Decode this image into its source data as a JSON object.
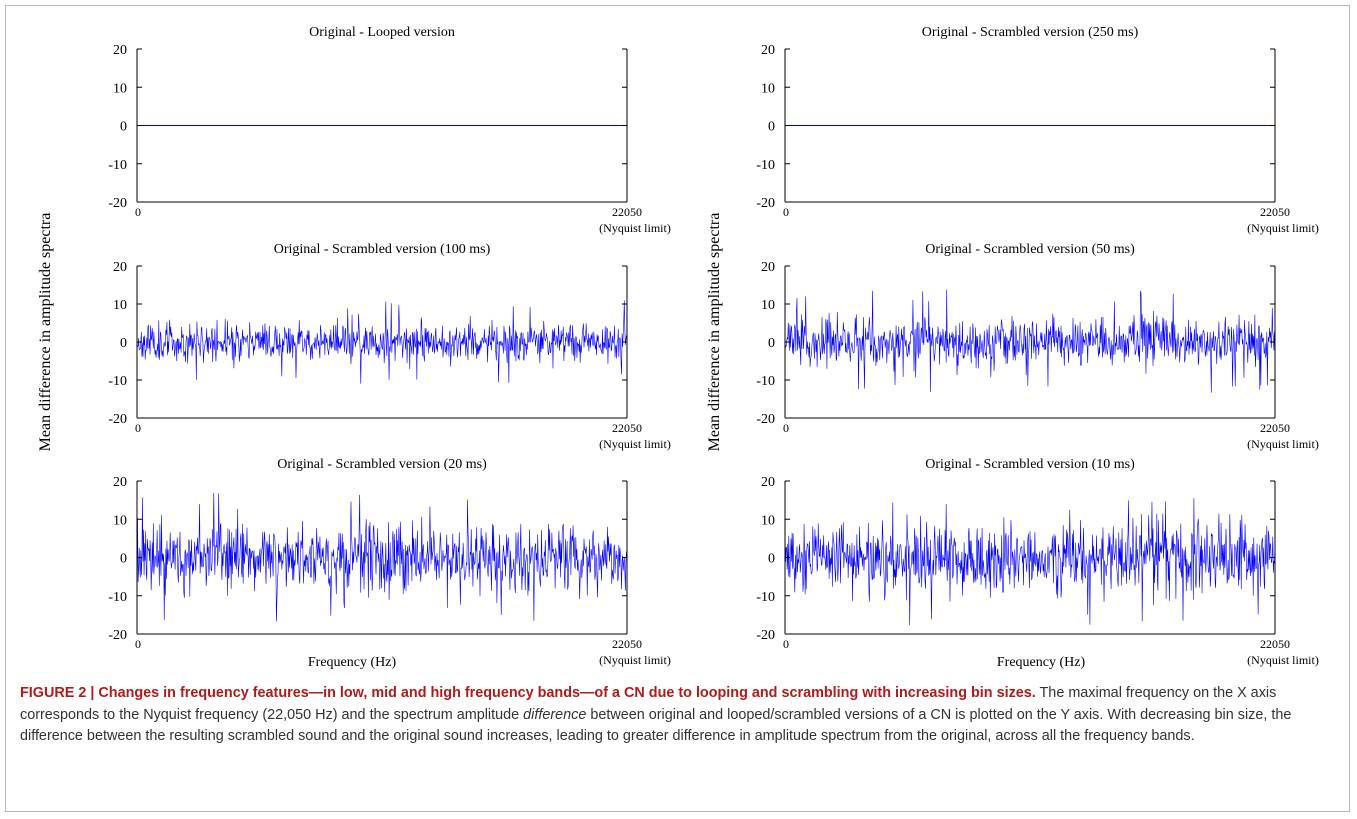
{
  "figure": {
    "ylabel": "Mean difference in amplitude spectra",
    "xlabel": "Frequency  (Hz)"
  },
  "caption": {
    "label": "FIGURE 2 | ",
    "title": "Changes in frequency features—in low, mid and high frequency bands—of a CN due to looping and scrambling with increasing bin sizes.",
    "body_1": " The maximal frequency on the X axis corresponds to the Nyquist frequency (22,050 Hz) and the spectrum amplitude ",
    "body_em": "difference",
    "body_2": " between original and looped/scrambled versions of a CN is plotted on the Y axis. With decreasing bin size, the difference between the resulting scrambled sound and the original sound increases, leading to greater difference in amplitude spectrum from the original, across all the frequency bands."
  },
  "colors": {
    "series": "#0000ff",
    "axis": "#000000",
    "caption_title": "#b31b1b"
  },
  "chart_data": [
    {
      "type": "line",
      "title": "Original - Looped version",
      "xlim": [
        0,
        22050
      ],
      "ylim": [
        -20,
        20
      ],
      "yticks": [
        20,
        10,
        0,
        -10,
        -20
      ],
      "xticks": [
        "0",
        "22050"
      ],
      "xmax_note": "(Nyquist limit)",
      "series": [
        {
          "kind": "constant",
          "value": 0
        }
      ]
    },
    {
      "type": "line",
      "title": "Original - Scrambled version (250 ms)",
      "xlim": [
        0,
        22050
      ],
      "ylim": [
        -20,
        20
      ],
      "yticks": [
        20,
        10,
        0,
        -10,
        -20
      ],
      "xticks": [
        "0",
        "22050"
      ],
      "xmax_note": "(Nyquist limit)",
      "series": [
        {
          "kind": "constant",
          "value": 0
        }
      ]
    },
    {
      "type": "line",
      "title": "Original - Scrambled version (100 ms)",
      "xlim": [
        0,
        22050
      ],
      "ylim": [
        -20,
        20
      ],
      "yticks": [
        20,
        10,
        0,
        -10,
        -20
      ],
      "xticks": [
        "0",
        "22050"
      ],
      "xmax_note": "(Nyquist limit)",
      "series": [
        {
          "kind": "noise",
          "typical_abs": 3.5,
          "max_abs": 11,
          "seed": 11
        }
      ]
    },
    {
      "type": "line",
      "title": "Original - Scrambled version (50 ms)",
      "xlim": [
        0,
        22050
      ],
      "ylim": [
        -20,
        20
      ],
      "yticks": [
        20,
        10,
        0,
        -10,
        -20
      ],
      "xticks": [
        "0",
        "22050"
      ],
      "xmax_note": "(Nyquist limit)",
      "series": [
        {
          "kind": "noise",
          "typical_abs": 4.5,
          "max_abs": 14,
          "seed": 23
        }
      ]
    },
    {
      "type": "line",
      "title": "Original - Scrambled version (20 ms)",
      "xlim": [
        0,
        22050
      ],
      "ylim": [
        -20,
        20
      ],
      "yticks": [
        20,
        10,
        0,
        -10,
        -20
      ],
      "xticks": [
        "0",
        "22050"
      ],
      "xmax_note": "(Nyquist limit)",
      "series": [
        {
          "kind": "noise",
          "typical_abs": 6,
          "max_abs": 17,
          "seed": 37
        }
      ]
    },
    {
      "type": "line",
      "title": "Original - Scrambled version (10 ms)",
      "xlim": [
        0,
        22050
      ],
      "ylim": [
        -20,
        20
      ],
      "yticks": [
        20,
        10,
        0,
        -10,
        -20
      ],
      "xticks": [
        "0",
        "22050"
      ],
      "xmax_note": "(Nyquist limit)",
      "series": [
        {
          "kind": "noise",
          "typical_abs": 6.5,
          "max_abs": 18,
          "seed": 53
        }
      ]
    }
  ]
}
